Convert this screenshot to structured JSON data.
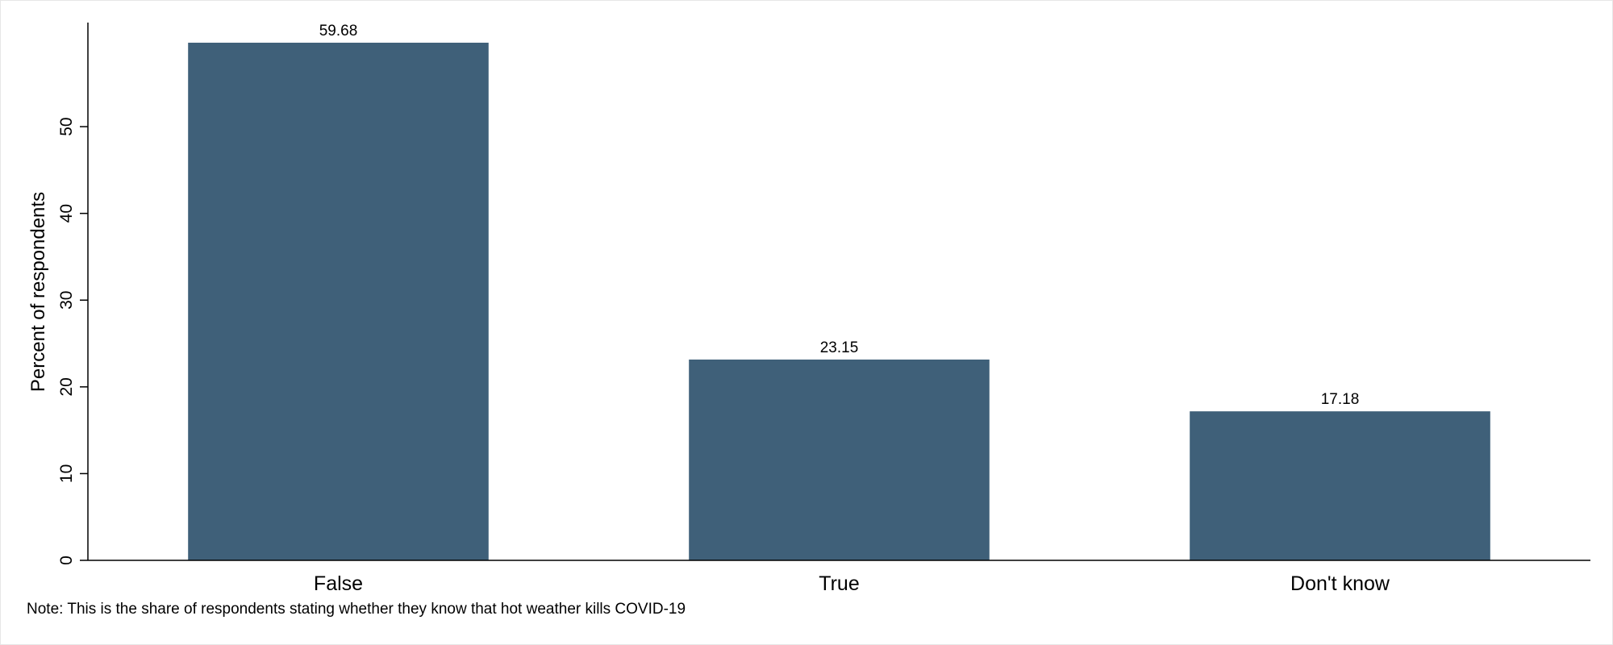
{
  "chart_data": {
    "type": "bar",
    "categories": [
      "False",
      "True",
      "Don't know"
    ],
    "values": [
      59.68,
      23.15,
      17.18
    ],
    "value_labels": [
      "59.68",
      "23.15",
      "17.18"
    ],
    "ylabel": "Percent of respondents",
    "xlabel": "",
    "ylim": [
      0,
      62
    ],
    "yticks": [
      0,
      10,
      20,
      30,
      40,
      50
    ],
    "grid": false,
    "bar_color": "#3f6079",
    "note": "Note: This is the share of respondents stating whether they know that hot weather kills COVID-19"
  }
}
